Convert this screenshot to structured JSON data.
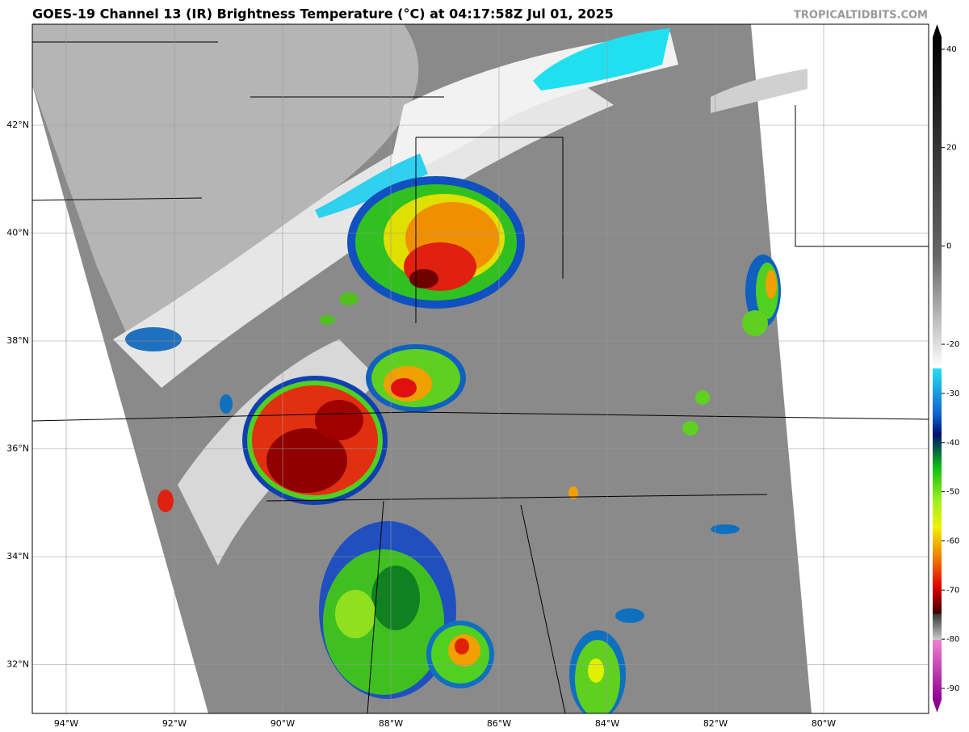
{
  "title": "GOES-19 Channel 13 (IR) Brightness Temperature (°C) at 04:17:58Z Jul 01, 2025",
  "watermark": "TROPICALTIDBITS.COM",
  "lat_ticks": [
    {
      "value": 42,
      "label": "42°N"
    },
    {
      "value": 40,
      "label": "40°N"
    },
    {
      "value": 38,
      "label": "38°N"
    },
    {
      "value": 36,
      "label": "36°N"
    },
    {
      "value": 34,
      "label": "34°N"
    },
    {
      "value": 32,
      "label": "32°N"
    }
  ],
  "lon_ticks": [
    {
      "value": -94,
      "label": "94°W"
    },
    {
      "value": -92,
      "label": "92°W"
    },
    {
      "value": -90,
      "label": "90°W"
    },
    {
      "value": -88,
      "label": "88°W"
    },
    {
      "value": -86,
      "label": "86°W"
    },
    {
      "value": -84,
      "label": "84°W"
    },
    {
      "value": -82,
      "label": "82°W"
    },
    {
      "value": -80,
      "label": "80°W"
    }
  ],
  "colorbar": {
    "ticks": [
      40,
      20,
      0,
      -20,
      -30,
      -40,
      -50,
      -60,
      -70,
      -80,
      -90
    ]
  }
}
